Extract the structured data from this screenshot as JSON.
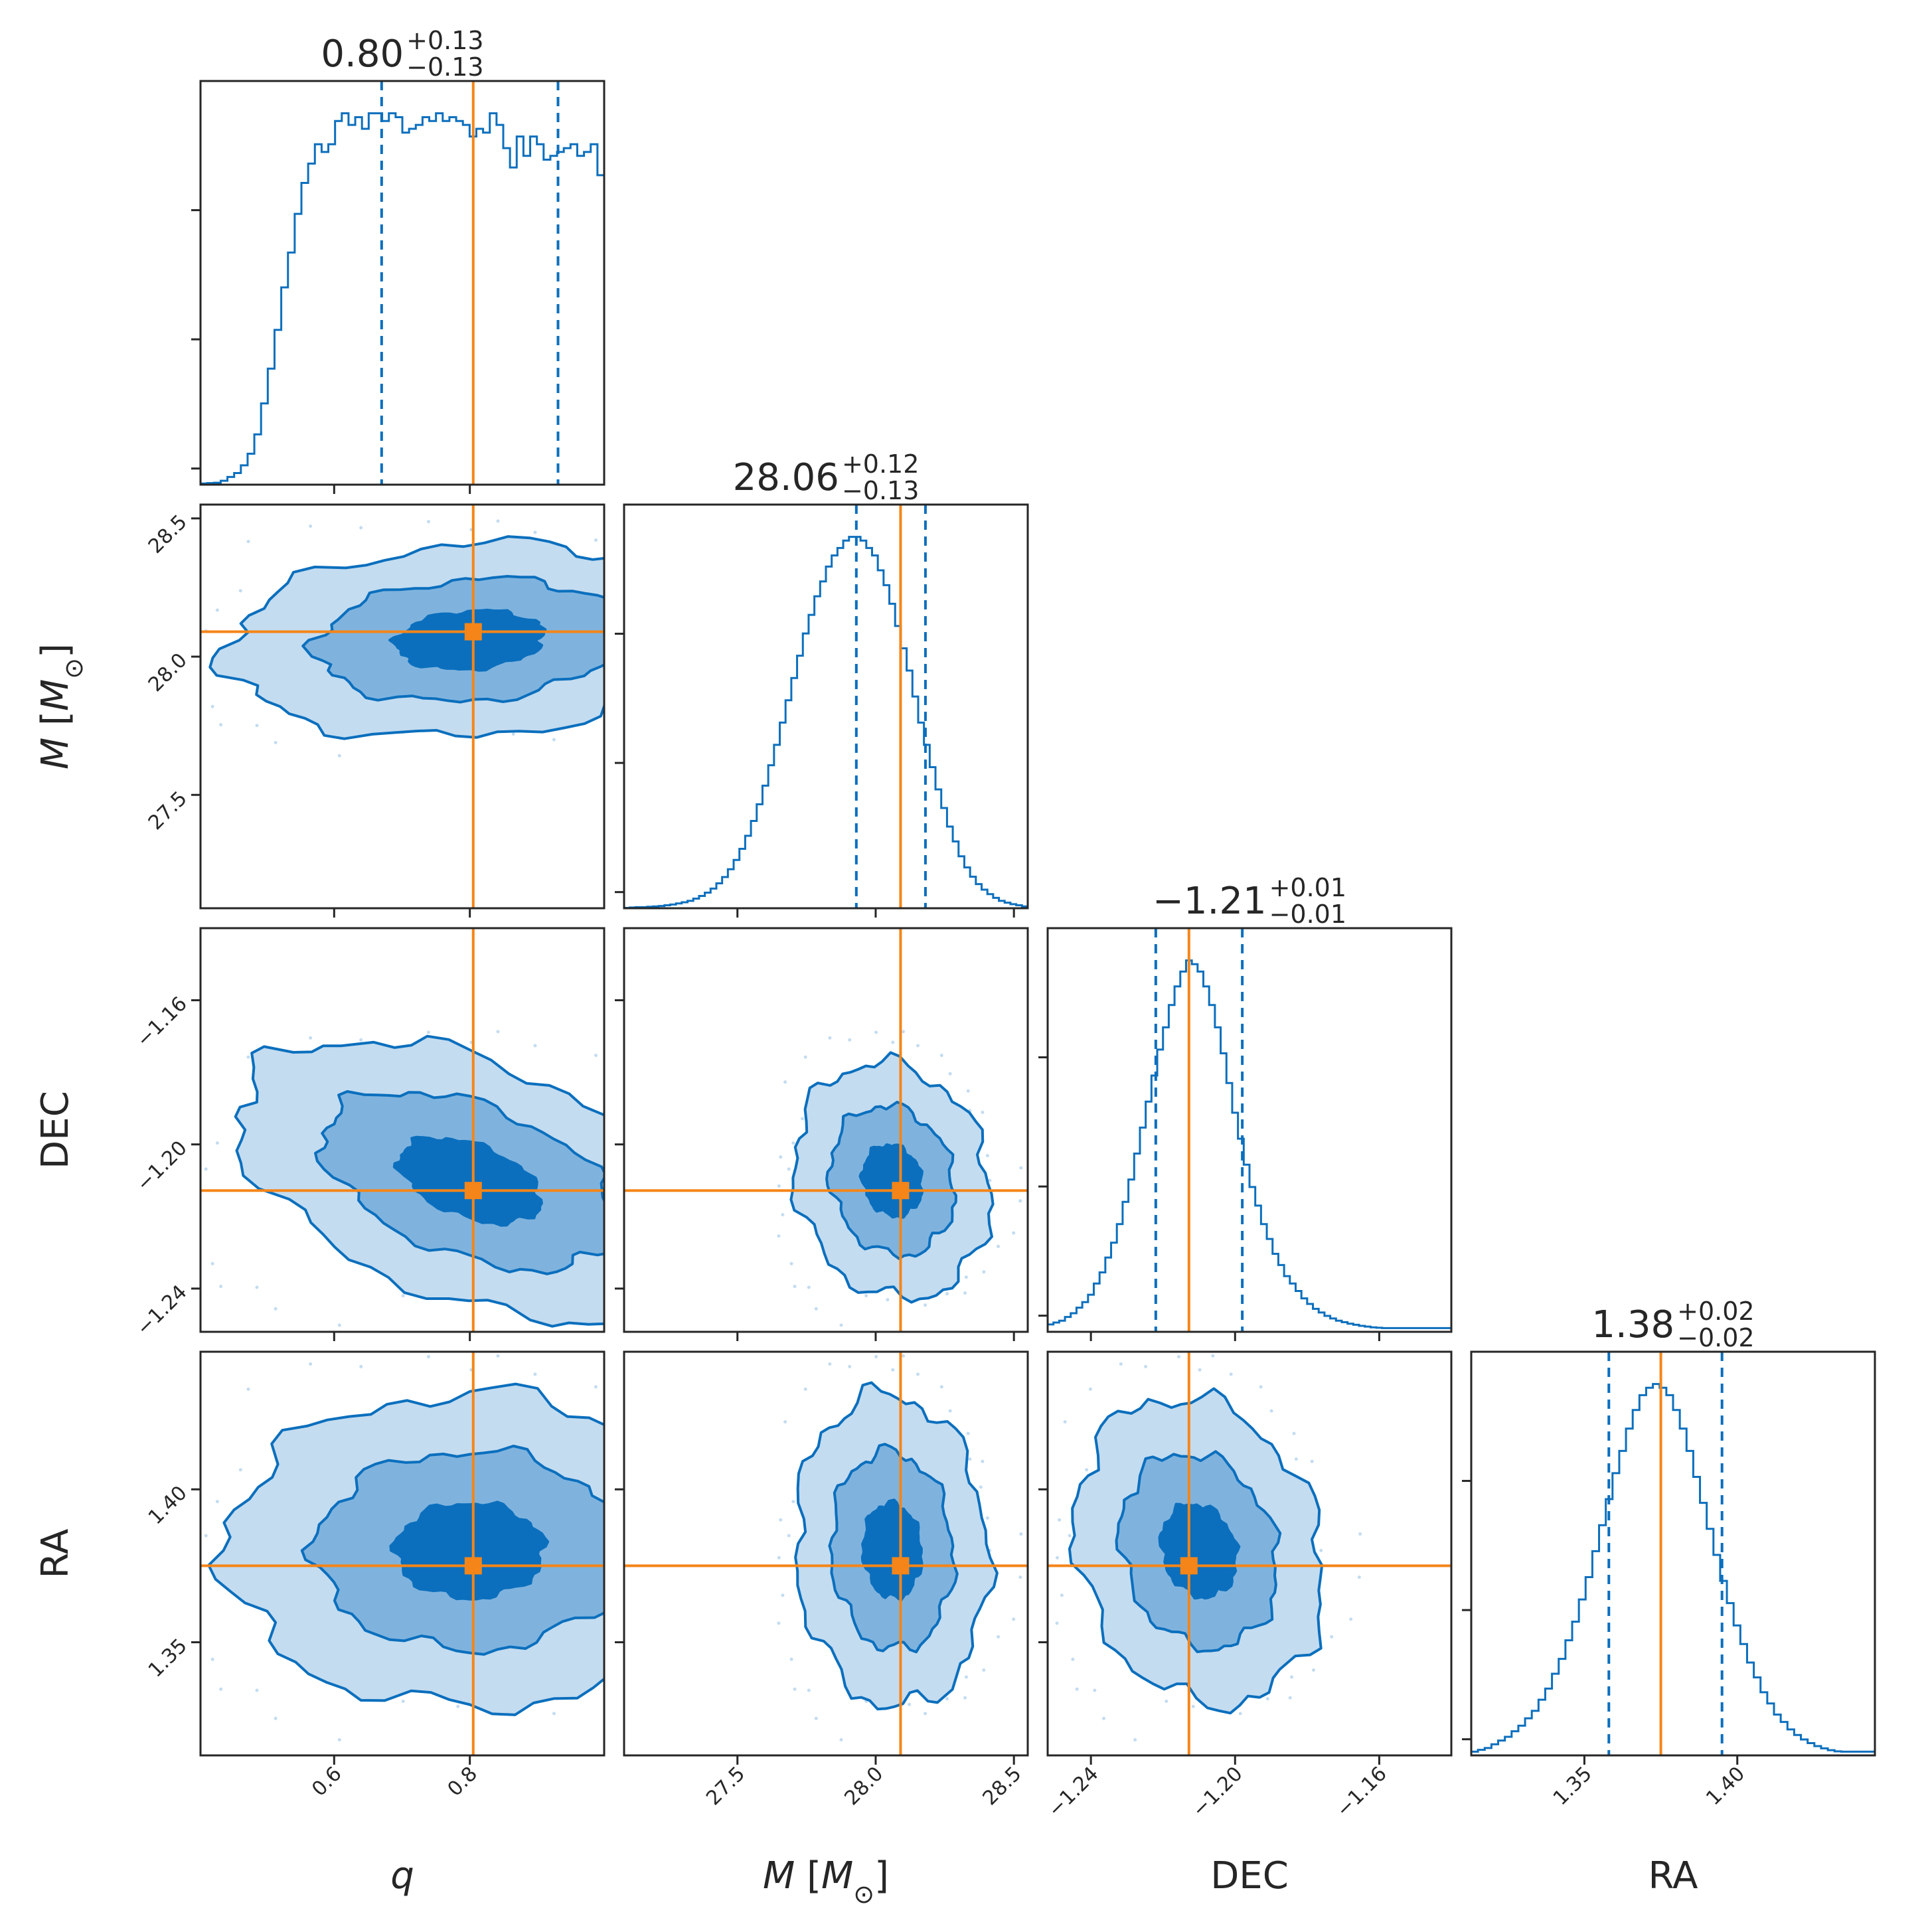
{
  "colors": {
    "contour_line": "#0b6fbd",
    "fill_outer": "#c4dcf0",
    "fill_mid": "#7fb3de",
    "fill_inner": "#0b6fbd",
    "truth": "#f58518",
    "axes": "#262626",
    "background": "#ffffff"
  },
  "chart_data": {
    "type": "corner",
    "parameters": [
      {
        "key": "q",
        "label": "q",
        "label_style": "italic",
        "range": [
          0.403,
          0.998
        ],
        "ticks": [
          0.6,
          0.8
        ],
        "tick_labels": [
          "0.6",
          "0.8"
        ],
        "median": 0.8,
        "lower": 0.67,
        "upper": 0.93,
        "truth": 0.805,
        "title": {
          "value": "0.80",
          "plus": "+0.13",
          "minus": "−0.13"
        },
        "histogram": {
          "range": [
            0.403,
            0.998
          ],
          "counts": [
            0.3,
            0.4,
            0.5,
            1,
            2,
            3,
            5,
            8,
            13,
            21,
            30,
            40,
            51,
            60,
            70,
            78,
            83,
            88,
            86,
            88,
            94,
            96,
            93,
            95,
            92,
            96,
            96,
            94,
            96,
            95,
            91,
            92,
            93,
            95,
            94,
            96,
            94,
            95,
            94,
            93,
            90,
            92,
            91,
            96,
            93,
            87,
            82,
            90,
            85,
            90,
            88,
            84,
            85,
            86,
            87,
            88,
            85,
            86,
            88,
            80
          ]
        }
      },
      {
        "key": "M",
        "label": "M [M⊙]",
        "label_main": "M",
        "label_unit_open": "[",
        "label_unit": "M",
        "label_unit_sub": "⊙",
        "label_unit_close": "]",
        "range": [
          27.09,
          28.55
        ],
        "ticks": [
          27.5,
          28.0,
          28.5
        ],
        "tick_labels": [
          "27.5",
          "28.0",
          "28.5"
        ],
        "median": 28.06,
        "lower": 27.93,
        "upper": 28.18,
        "truth": 28.09,
        "title": {
          "value": "28.06",
          "plus": "+0.12",
          "minus": "−0.13"
        },
        "histogram": {
          "range": [
            27.09,
            28.55
          ],
          "counts": [
            0.1,
            0.2,
            0.3,
            0.3,
            0.4,
            0.5,
            0.6,
            0.8,
            1,
            1.3,
            1.6,
            2,
            2.6,
            3.3,
            4.2,
            5.3,
            6.7,
            8.4,
            10.5,
            13,
            16,
            19.5,
            23.5,
            28,
            33,
            38.5,
            44,
            50,
            56,
            62,
            68,
            74,
            79,
            84,
            88,
            92,
            95,
            97,
            99,
            100,
            100,
            99,
            97,
            95,
            91,
            87,
            82,
            76,
            70,
            64,
            57,
            50,
            44,
            38,
            32,
            27,
            22,
            18,
            14,
            11,
            8.5,
            6.5,
            5,
            3.8,
            2.8,
            2,
            1.5,
            1.1,
            0.8,
            0.5
          ]
        }
      },
      {
        "key": "DEC",
        "label": "DEC",
        "label_style": "normal",
        "range": [
          -1.252,
          -1.14
        ],
        "ticks": [
          -1.24,
          -1.2,
          -1.16
        ],
        "tick_labels": [
          "−1.24",
          "−1.20",
          "−1.16"
        ],
        "median": -1.21,
        "lower": -1.222,
        "upper": -1.198,
        "truth": -1.2128,
        "title": {
          "value": "−1.21",
          "plus": "+0.01",
          "minus": "−0.01"
        },
        "histogram": {
          "range": [
            -1.252,
            -1.14
          ],
          "counts": [
            2,
            2.5,
            3,
            4,
            5,
            6.5,
            8,
            10,
            13,
            16,
            20,
            24,
            29,
            35,
            41,
            48,
            55,
            62,
            69,
            76,
            82,
            88,
            93,
            97,
            100,
            99,
            97,
            93,
            88,
            82,
            75,
            67,
            59,
            52,
            45,
            39,
            34,
            29,
            25,
            21,
            18,
            15,
            13,
            11,
            9,
            7.5,
            6.2,
            5.2,
            4.3,
            3.6,
            3,
            2.6,
            2.2,
            1.9,
            1.6,
            1.4,
            1.2,
            1.1,
            1,
            1,
            1,
            1,
            1,
            1,
            1,
            1,
            1,
            1,
            1,
            1
          ]
        }
      },
      {
        "key": "RA",
        "label": "RA",
        "label_style": "normal",
        "range": [
          1.313,
          1.445
        ],
        "ticks": [
          1.35,
          1.4
        ],
        "tick_labels": [
          "1.35",
          "1.40"
        ],
        "median": 1.38,
        "lower": 1.358,
        "upper": 1.395,
        "truth": 1.375,
        "title": {
          "value": "1.38",
          "plus": "+0.02",
          "minus": "−0.02"
        },
        "histogram": {
          "range": [
            1.313,
            1.445
          ],
          "counts": [
            1,
            1.5,
            2,
            3,
            4,
            5,
            6.5,
            8,
            10,
            12,
            15,
            18,
            22,
            26,
            31,
            36,
            42,
            48,
            55,
            62,
            69,
            76,
            82,
            88,
            93,
            97,
            99,
            100,
            99,
            97,
            93,
            88,
            82,
            75,
            68,
            61,
            54,
            47,
            41,
            35,
            30,
            25,
            21,
            17,
            14,
            11,
            9,
            7,
            5.5,
            4.3,
            3.3,
            2.5,
            1.9,
            1.4,
            1.1,
            1,
            1,
            1,
            1,
            1
          ]
        }
      }
    ],
    "contour_levels": [
      "outer",
      "mid",
      "inner"
    ],
    "correlations": {
      "1,0": 0.1,
      "2,0": -0.55,
      "2,1": 0.45,
      "3,0": 0.0,
      "3,1": 0.1,
      "3,2": 0.5
    },
    "grid": false
  }
}
